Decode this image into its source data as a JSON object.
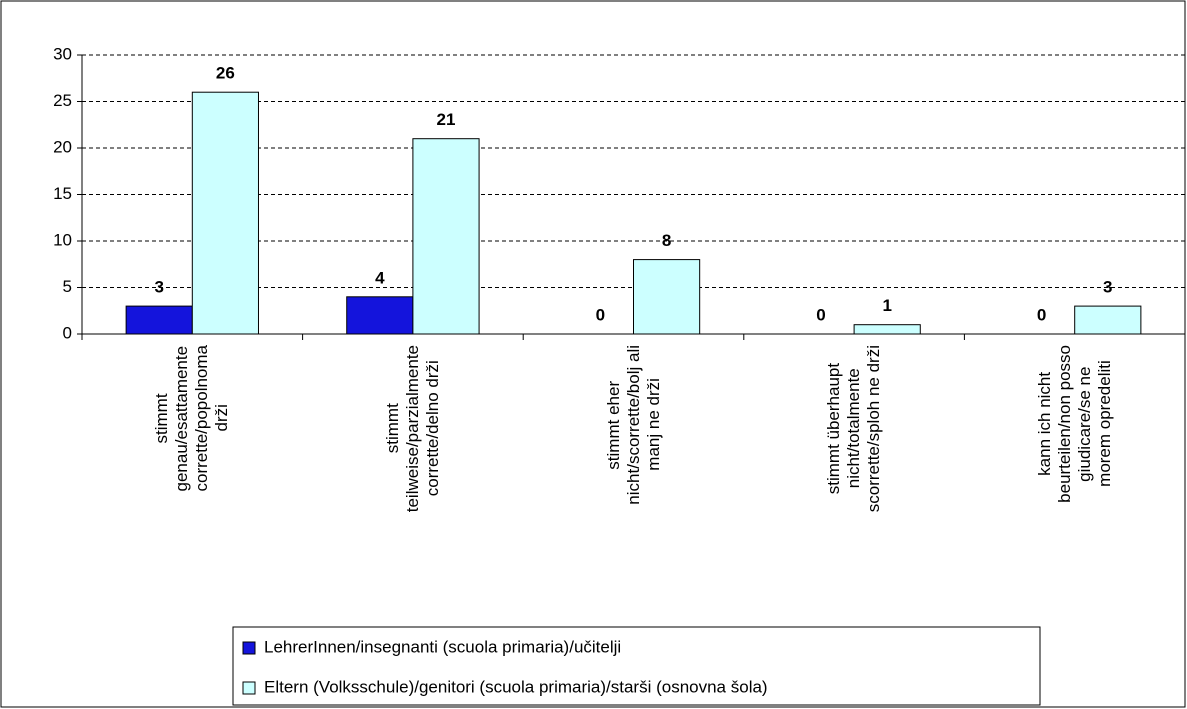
{
  "chart_data": {
    "type": "bar",
    "categories": [
      "stimmt\ngenau/esattamente\ncorrette/popolnoma\ndrži",
      "stimmt\nteilweise/parzialmente\ncorrette/delno drži",
      "stimmt eher\nnicht/scorrette/bolj ali\nmanj ne drži",
      "stimmt überhaupt\nnicht/totalmente\nscorrette/sploh ne drži",
      "kann ich nicht\nbeurteilen/non posso\ngiudicare/se ne\nmorem opredeliti"
    ],
    "series": [
      {
        "name": "LehrerInnen/insegnanti (scuola primaria)/učitelji",
        "color": "#1414dc",
        "values": [
          3,
          4,
          0,
          0,
          0
        ]
      },
      {
        "name": "Eltern (Volksschule)/genitori (scuola primaria)/starši (osnovna šola)",
        "color": "#ccffff",
        "values": [
          26,
          21,
          8,
          1,
          3
        ]
      }
    ],
    "ylim": [
      0,
      30
    ],
    "yticks": [
      0,
      5,
      10,
      15,
      20,
      25,
      30
    ],
    "grid": true,
    "legend": "bottom"
  }
}
